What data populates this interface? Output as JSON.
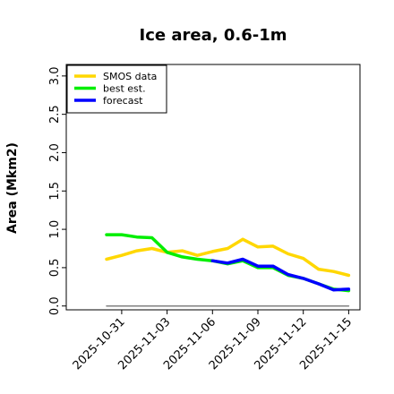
{
  "chart_data": {
    "type": "line",
    "title": "Ice area, 0.6-1m",
    "ylabel": "Area (Mkm2)",
    "xlabel": "",
    "ylim": [
      -0.05,
      3.15
    ],
    "yticks": [
      "0.0",
      "0.5",
      "1.0",
      "1.5",
      "2.0",
      "2.5",
      "3.0"
    ],
    "xticks": [
      {
        "label": "2025-10-31",
        "color": "#000000"
      },
      {
        "label": "2025-11-03",
        "color": "#000000"
      },
      {
        "label": "2025-11-06",
        "color": "#228b22"
      },
      {
        "label": "2025-11-09",
        "color": "#000000"
      },
      {
        "label": "2025-11-12",
        "color": "#000000"
      },
      {
        "label": "2025-11-15",
        "color": "#000000"
      }
    ],
    "x_dates": [
      "2025-10-30",
      "2025-10-31",
      "2025-11-01",
      "2025-11-02",
      "2025-11-03",
      "2025-11-04",
      "2025-11-05",
      "2025-11-06",
      "2025-11-07",
      "2025-11-08",
      "2025-11-09",
      "2025-11-10",
      "2025-11-11",
      "2025-11-12",
      "2025-11-13",
      "2025-11-14",
      "2025-11-15"
    ],
    "legend": {
      "position": "top-left"
    },
    "series": [
      {
        "name": "SMOS data",
        "color": "#ffd700",
        "width": 3.5,
        "x": [
          "2025-10-30",
          "2025-10-31",
          "2025-11-01",
          "2025-11-02",
          "2025-11-03",
          "2025-11-04",
          "2025-11-05",
          "2025-11-06",
          "2025-11-07",
          "2025-11-08",
          "2025-11-09",
          "2025-11-10",
          "2025-11-11",
          "2025-11-12",
          "2025-11-13",
          "2025-11-14",
          "2025-11-15"
        ],
        "y": [
          0.61,
          0.66,
          0.72,
          0.75,
          0.7,
          0.72,
          0.66,
          0.71,
          0.75,
          0.87,
          0.77,
          0.78,
          0.68,
          0.62,
          0.48,
          0.45,
          0.4
        ]
      },
      {
        "name": "best est.",
        "color": "#00ee00",
        "width": 3.5,
        "x": [
          "2025-10-30",
          "2025-10-31",
          "2025-11-01",
          "2025-11-02",
          "2025-11-03",
          "2025-11-04",
          "2025-11-05",
          "2025-11-06",
          "2025-11-07",
          "2025-11-08",
          "2025-11-09",
          "2025-11-10",
          "2025-11-11",
          "2025-11-12",
          "2025-11-13",
          "2025-11-14",
          "2025-11-15"
        ],
        "y": [
          0.93,
          0.93,
          0.9,
          0.89,
          0.7,
          0.64,
          0.61,
          0.59,
          0.55,
          0.59,
          0.5,
          0.5,
          0.4,
          0.36,
          0.29,
          0.22,
          0.2
        ]
      },
      {
        "name": "forecast",
        "color": "#0000ff",
        "width": 3.5,
        "x": [
          "2025-11-06",
          "2025-11-07",
          "2025-11-08",
          "2025-11-09",
          "2025-11-10",
          "2025-11-11",
          "2025-11-12",
          "2025-11-13",
          "2025-11-14",
          "2025-11-15"
        ],
        "y": [
          0.59,
          0.56,
          0.61,
          0.52,
          0.52,
          0.41,
          0.36,
          0.29,
          0.21,
          0.22
        ]
      },
      {
        "name": "",
        "color": "#808080",
        "width": 1.5,
        "x": [
          "2025-10-30",
          "2025-11-15"
        ],
        "y": [
          0.0,
          0.0
        ]
      }
    ]
  }
}
